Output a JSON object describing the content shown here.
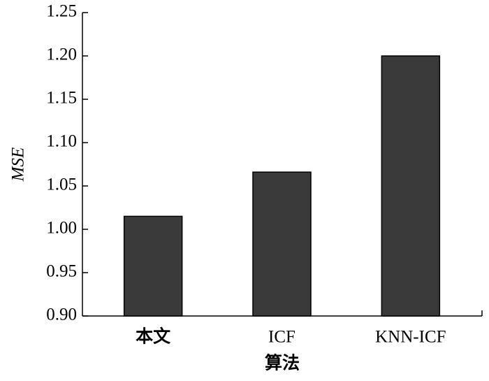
{
  "chart_data": {
    "type": "bar",
    "x_label": "算法",
    "y_label": "MSE",
    "categories": [
      "本文",
      "ICF",
      "KNN-ICF"
    ],
    "values": [
      1.015,
      1.066,
      1.2
    ],
    "color": "#3a3a3a",
    "ylim": [
      0.9,
      1.25
    ],
    "yticks": [
      {
        "value": 0.9,
        "label": "0.90"
      },
      {
        "value": 0.95,
        "label": "0.95"
      },
      {
        "value": 1.0,
        "label": "1.00"
      },
      {
        "value": 1.05,
        "label": "1.05"
      },
      {
        "value": 1.1,
        "label": "1.10"
      },
      {
        "value": 1.15,
        "label": "1.15"
      },
      {
        "value": 1.2,
        "label": "1.20"
      },
      {
        "value": 1.25,
        "label": "1.25"
      }
    ],
    "grid": false
  }
}
